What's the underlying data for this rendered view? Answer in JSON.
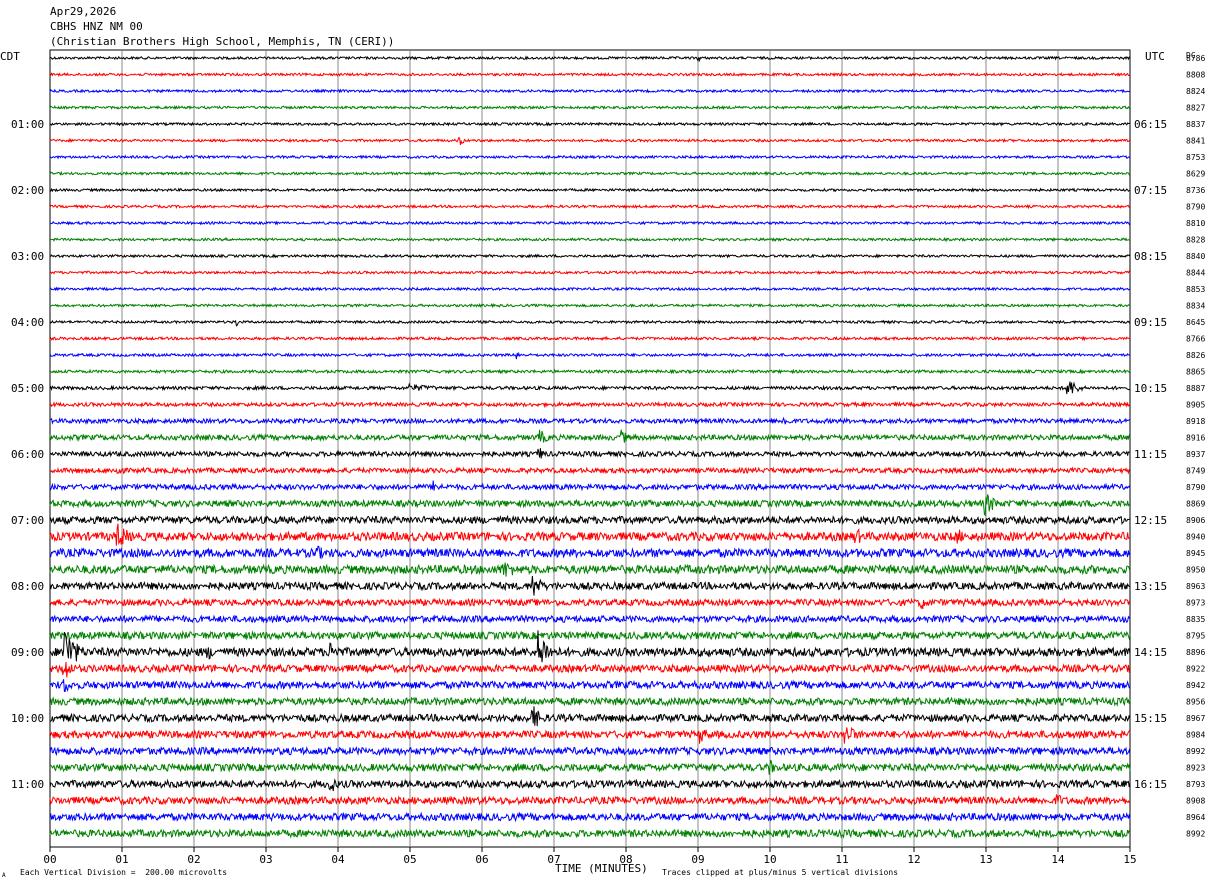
{
  "header": {
    "date": "Apr29,2026",
    "station": "CBHS HNZ NM 00",
    "location": "(Christian Brothers High School, Memphis, TN (CERI))"
  },
  "left_label": "CDT",
  "right_label": "UTC",
  "dc_label": "DC",
  "footer": {
    "x_axis_title": "TIME (MINUTES)",
    "scale_note": "Each Vertical Division =  200.00 microvolts",
    "clip_note": "Traces clipped at plus/minus 5 vertical divisions",
    "corner_mark": "A"
  },
  "chart_data": {
    "type": "line",
    "title": "CBHS HNZ NM 00",
    "xlabel": "TIME (MINUTES)",
    "ylabel": "",
    "xlim": [
      0,
      15
    ],
    "x_ticks": [
      "00",
      "01",
      "02",
      "03",
      "04",
      "05",
      "06",
      "07",
      "08",
      "09",
      "10",
      "11",
      "12",
      "13",
      "14",
      "15"
    ],
    "grid": true,
    "rows_per_hour": 4,
    "trace_colors": [
      "#000000",
      "#ff0000",
      "#0000ff",
      "#008000"
    ],
    "left_time_labels": [
      "01:00",
      "02:00",
      "03:00",
      "04:00",
      "05:00",
      "06:00",
      "07:00",
      "08:00",
      "09:00",
      "10:00",
      "11:00"
    ],
    "right_time_labels": [
      "06:15",
      "07:15",
      "08:15",
      "09:15",
      "10:15",
      "11:15",
      "12:15",
      "13:15",
      "14:15",
      "15:15",
      "16:15"
    ],
    "dc_offsets": [
      8786,
      8808,
      8824,
      8827,
      8837,
      8841,
      8753,
      8629,
      8736,
      8790,
      8810,
      8828,
      8840,
      8844,
      8853,
      8834,
      8645,
      8766,
      8826,
      8865,
      8887,
      8905,
      8918,
      8916,
      8937,
      8749,
      8790,
      8869,
      8906,
      8940,
      8945,
      8950,
      8963,
      8973,
      8835,
      8795,
      8896,
      8922,
      8942,
      8956,
      8967,
      8984,
      8992,
      8923,
      8793,
      8908,
      8964,
      8992
    ],
    "noise_levels": [
      1.2,
      1.2,
      1.2,
      1.2,
      1.2,
      1.2,
      1.2,
      1.2,
      1.2,
      1.2,
      1.2,
      1.2,
      1.2,
      1.2,
      1.2,
      1.2,
      1.2,
      1.3,
      1.3,
      1.4,
      1.6,
      1.8,
      2.2,
      2.6,
      2.4,
      2.4,
      2.6,
      3.2,
      3.6,
      4.2,
      4.2,
      4.2,
      3.6,
      3.2,
      3.2,
      3.6,
      4.2,
      3.6,
      3.6,
      3.6,
      3.6,
      3.6,
      3.6,
      3.6,
      3.6,
      3.6,
      3.6,
      3.6
    ],
    "events": [
      {
        "row": 0,
        "minute": 9.0,
        "amp": 4,
        "dur": 0.12
      },
      {
        "row": 5,
        "minute": 5.7,
        "amp": 6,
        "dur": 0.1
      },
      {
        "row": 16,
        "minute": 2.6,
        "amp": 5,
        "dur": 0.05
      },
      {
        "row": 18,
        "minute": 6.5,
        "amp": 5,
        "dur": 0.08
      },
      {
        "row": 20,
        "minute": 5.0,
        "amp": 4,
        "dur": 1.1
      },
      {
        "row": 20,
        "minute": 14.15,
        "amp": 10,
        "dur": 0.3
      },
      {
        "row": 22,
        "minute": 10.2,
        "amp": 7,
        "dur": 0.2
      },
      {
        "row": 23,
        "minute": 6.8,
        "amp": 9,
        "dur": 0.25
      },
      {
        "row": 23,
        "minute": 7.95,
        "amp": 8,
        "dur": 0.2
      },
      {
        "row": 24,
        "minute": 6.8,
        "amp": 7,
        "dur": 0.2
      },
      {
        "row": 25,
        "minute": 0.95,
        "amp": 8,
        "dur": 0.15
      },
      {
        "row": 26,
        "minute": 5.35,
        "amp": 7,
        "dur": 0.2
      },
      {
        "row": 27,
        "minute": 13.0,
        "amp": 12,
        "dur": 0.35
      },
      {
        "row": 29,
        "minute": 0.95,
        "amp": 14,
        "dur": 0.35
      },
      {
        "row": 29,
        "minute": 11.2,
        "amp": 9,
        "dur": 0.3
      },
      {
        "row": 29,
        "minute": 12.6,
        "amp": 9,
        "dur": 0.3
      },
      {
        "row": 30,
        "minute": 3.7,
        "amp": 9,
        "dur": 0.3
      },
      {
        "row": 31,
        "minute": 6.3,
        "amp": 10,
        "dur": 0.5
      },
      {
        "row": 32,
        "minute": 6.7,
        "amp": 14,
        "dur": 0.3
      },
      {
        "row": 33,
        "minute": 12.1,
        "amp": 8,
        "dur": 0.25
      },
      {
        "row": 36,
        "minute": 0.2,
        "amp": 28,
        "dur": 0.35
      },
      {
        "row": 36,
        "minute": 3.9,
        "amp": 12,
        "dur": 0.3
      },
      {
        "row": 36,
        "minute": 6.8,
        "amp": 22,
        "dur": 0.3
      },
      {
        "row": 36,
        "minute": 2.2,
        "amp": 8,
        "dur": 0.3
      },
      {
        "row": 37,
        "minute": 0.2,
        "amp": 16,
        "dur": 0.2
      },
      {
        "row": 38,
        "minute": 0.2,
        "amp": 10,
        "dur": 0.2
      },
      {
        "row": 40,
        "minute": 6.7,
        "amp": 14,
        "dur": 0.3
      },
      {
        "row": 41,
        "minute": 9.05,
        "amp": 10,
        "dur": 0.2
      },
      {
        "row": 41,
        "minute": 11.05,
        "amp": 11,
        "dur": 0.4
      },
      {
        "row": 43,
        "minute": 10.0,
        "amp": 9,
        "dur": 0.2
      },
      {
        "row": 44,
        "minute": 3.9,
        "amp": 9,
        "dur": 0.3
      },
      {
        "row": 45,
        "minute": 14.0,
        "amp": 8,
        "dur": 0.2
      }
    ]
  }
}
